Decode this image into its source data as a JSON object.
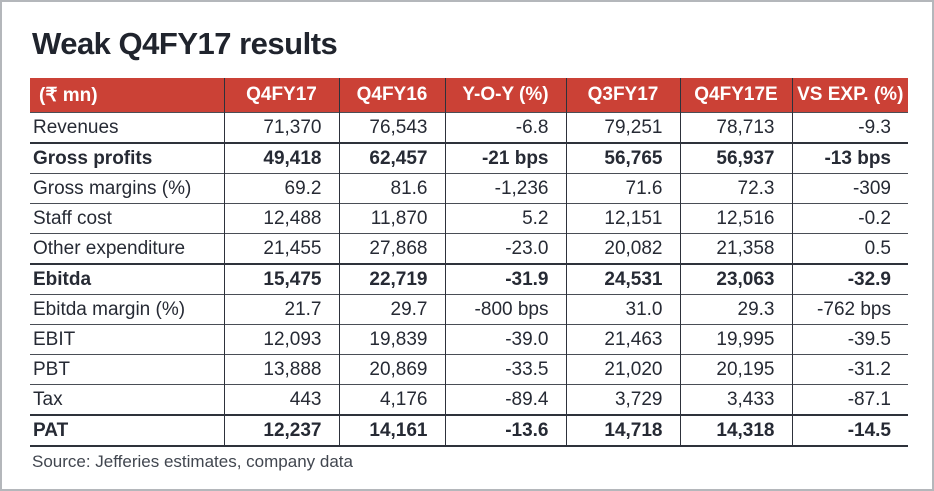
{
  "chart_data": {
    "type": "table",
    "title": "Weak Q4FY17 results",
    "source": "Source: Jefferies estimates, company data",
    "columns": [
      "(₹ mn)",
      "Q4FY17",
      "Q4FY16",
      "Y-O-Y (%)",
      "Q3FY17",
      "Q4FY17E",
      "VS EXP. (%)"
    ],
    "rows": [
      {
        "label": "Revenues",
        "values": [
          "71,370",
          "76,543",
          "-6.8",
          "79,251",
          "78,713",
          "-9.3"
        ],
        "bold": false
      },
      {
        "label": "Gross profits",
        "values": [
          "49,418",
          "62,457",
          "-21 bps",
          "56,765",
          "56,937",
          "-13 bps"
        ],
        "bold": true
      },
      {
        "label": "Gross margins (%)",
        "values": [
          "69.2",
          "81.6",
          "-1,236",
          "71.6",
          "72.3",
          "-309"
        ],
        "bold": false
      },
      {
        "label": "Staff cost",
        "values": [
          "12,488",
          "11,870",
          "5.2",
          "12,151",
          "12,516",
          "-0.2"
        ],
        "bold": false
      },
      {
        "label": "Other expenditure",
        "values": [
          "21,455",
          "27,868",
          "-23.0",
          "20,082",
          "21,358",
          "0.5"
        ],
        "bold": false
      },
      {
        "label": "Ebitda",
        "values": [
          "15,475",
          "22,719",
          "-31.9",
          "24,531",
          "23,063",
          "-32.9"
        ],
        "bold": true
      },
      {
        "label": "Ebitda margin (%)",
        "values": [
          "21.7",
          "29.7",
          "-800 bps",
          "31.0",
          "29.3",
          "-762 bps"
        ],
        "bold": false
      },
      {
        "label": "EBIT",
        "values": [
          "12,093",
          "19,839",
          "-39.0",
          "21,463",
          "19,995",
          "-39.5"
        ],
        "bold": false
      },
      {
        "label": "PBT",
        "values": [
          "13,888",
          "20,869",
          "-33.5",
          "21,020",
          "20,195",
          "-31.2"
        ],
        "bold": false
      },
      {
        "label": "Tax",
        "values": [
          "443",
          "4,176",
          "-89.4",
          "3,729",
          "3,433",
          "-87.1"
        ],
        "bold": false
      },
      {
        "label": "PAT",
        "values": [
          "12,237",
          "14,161",
          "-13.6",
          "14,718",
          "14,318",
          "-14.5"
        ],
        "bold": true
      }
    ],
    "layout": {
      "header_alignment": "center",
      "value_alignment": "right",
      "grid": "on"
    },
    "colors": {
      "header_bg": "#cb4136",
      "header_text": "#ffffff",
      "title_text": "#20242d",
      "body_text": "#262a34",
      "grid_line": "#2e323b",
      "source_text": "#41464f",
      "frame_border": "#b4b7bb"
    }
  }
}
